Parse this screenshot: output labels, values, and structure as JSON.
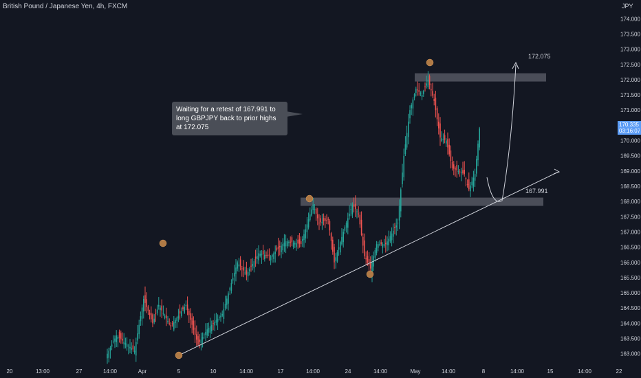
{
  "header": {
    "symbol_title": "British Pound / Japanese Yen, 4h, FXCM",
    "currency": "JPY"
  },
  "annotation": {
    "text": "Waiting for a retest of 167.991 to long GBPJPY back to prior highs at 172.075"
  },
  "levels": {
    "upper_label": "172.075",
    "lower_label": "167.991"
  },
  "last_price": {
    "value": "170.335",
    "countdown": "03:16:07"
  },
  "colors": {
    "background": "#131722",
    "bull": "#26a69a",
    "bear": "#ef5350",
    "zone": "#5d606b",
    "marker": "#b07a45",
    "price_tag": "#5b9cf6"
  },
  "chart_data": {
    "type": "candlestick",
    "title": "British Pound / Japanese Yen, 4h, FXCM",
    "y_unit": "JPY",
    "ylim": [
      162.7,
      174.3
    ],
    "y_ticks": [
      "163.000",
      "163.500",
      "164.000",
      "164.500",
      "165.000",
      "165.500",
      "166.000",
      "166.500",
      "167.000",
      "167.500",
      "168.000",
      "168.500",
      "169.000",
      "169.500",
      "170.000",
      "170.500",
      "171.000",
      "171.500",
      "172.000",
      "172.500",
      "173.000",
      "173.500",
      "174.000"
    ],
    "x_ticks": [
      "20",
      "13:00",
      "27",
      "14:00",
      "Apr",
      "5",
      "10",
      "14:00",
      "17",
      "14:00",
      "24",
      "14:00",
      "May",
      "14:00",
      "8",
      "14:00",
      "15",
      "14:00",
      "22"
    ],
    "grid": false,
    "path_waypoints": [
      {
        "i": 0,
        "p": 163.0
      },
      {
        "i": 6,
        "p": 163.6
      },
      {
        "i": 18,
        "p": 163.1
      },
      {
        "i": 24,
        "p": 164.8
      },
      {
        "i": 30,
        "p": 164.0
      },
      {
        "i": 34,
        "p": 164.6
      },
      {
        "i": 42,
        "p": 163.9
      },
      {
        "i": 52,
        "p": 164.6
      },
      {
        "i": 60,
        "p": 163.3
      },
      {
        "i": 66,
        "p": 163.8
      },
      {
        "i": 76,
        "p": 164.3
      },
      {
        "i": 86,
        "p": 166.0
      },
      {
        "i": 92,
        "p": 165.6
      },
      {
        "i": 100,
        "p": 166.3
      },
      {
        "i": 108,
        "p": 166.2
      },
      {
        "i": 118,
        "p": 166.7
      },
      {
        "i": 128,
        "p": 166.6
      },
      {
        "i": 136,
        "p": 167.9
      },
      {
        "i": 140,
        "p": 167.3
      },
      {
        "i": 146,
        "p": 167.4
      },
      {
        "i": 150,
        "p": 166.0
      },
      {
        "i": 156,
        "p": 167.0
      },
      {
        "i": 162,
        "p": 167.9
      },
      {
        "i": 166,
        "p": 167.6
      },
      {
        "i": 170,
        "p": 166.2
      },
      {
        "i": 174,
        "p": 165.8
      },
      {
        "i": 178,
        "p": 166.6
      },
      {
        "i": 184,
        "p": 166.6
      },
      {
        "i": 192,
        "p": 167.3
      },
      {
        "i": 196,
        "p": 169.5
      },
      {
        "i": 200,
        "p": 171.0
      },
      {
        "i": 204,
        "p": 171.7
      },
      {
        "i": 208,
        "p": 171.5
      },
      {
        "i": 212,
        "p": 172.0
      },
      {
        "i": 216,
        "p": 171.3
      },
      {
        "i": 220,
        "p": 170.1
      },
      {
        "i": 224,
        "p": 170.0
      },
      {
        "i": 228,
        "p": 169.1
      },
      {
        "i": 232,
        "p": 169.0
      },
      {
        "i": 236,
        "p": 168.9
      },
      {
        "i": 239,
        "p": 168.4
      },
      {
        "i": 243,
        "p": 168.9
      },
      {
        "i": 246,
        "p": 170.4
      }
    ],
    "levels": [
      {
        "label": "172.075",
        "value": 172.075
      },
      {
        "label": "167.991",
        "value": 167.991
      }
    ],
    "marked_swings": [
      {
        "i": 1,
        "p": 162.9
      },
      {
        "i": 30,
        "p": 166.4
      },
      {
        "i": 137,
        "p": 167.93
      },
      {
        "i": 176,
        "p": 165.5
      },
      {
        "i": 214,
        "p": 172.3
      }
    ],
    "last_price": 170.335
  }
}
